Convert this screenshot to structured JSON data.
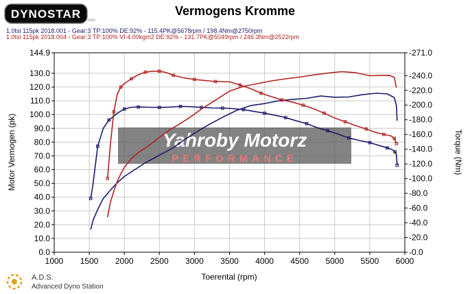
{
  "header": {
    "logo_text": "DYNOSTAR",
    "logo_sub": ".com",
    "title": "Vermogens Kromme"
  },
  "runs": [
    {
      "label": "1.0tsi 115pk 2018.001 - Gear:3 TP:100% DE:92%  - 115.4PK@5678rpm / 198.4Nm@2750rpm",
      "color": "#1a1a6e"
    },
    {
      "label": "1.0tsi 115pk 2018.004 - Gear:3 TP:100% VI:4.00kgm2 DE:92%  - 131.7PK@5049rpm / 246.3Nm@2522rpm",
      "color": "#b22222"
    }
  ],
  "watermark": {
    "line1": "Yahroby Motorz",
    "line2": "PERFORMANCE"
  },
  "footer": {
    "abbr": "A.D.S.",
    "name": "Advanced Dyno Station"
  },
  "chart_data": {
    "type": "line",
    "xlabel": "Toerental (rpm)",
    "ylabel_left": "Motor Vermogen (pk)",
    "ylabel_right": "Torque (Nm)",
    "xlim": [
      1000,
      6000
    ],
    "ylim_left": [
      0,
      144.9
    ],
    "ylim_right": [
      0,
      271
    ],
    "x_ticks": [
      1000,
      1500,
      2000,
      2500,
      3000,
      3500,
      4000,
      4500,
      5000,
      5500,
      6000
    ],
    "y_ticks_left": [
      "144.9",
      "130.0",
      "120.0",
      "110.0",
      "100.0",
      "90.0",
      "80.0",
      "70.0",
      "60.0",
      "50.0",
      "40.0",
      "30.0",
      "20.0",
      "10.0",
      "0.0"
    ],
    "y_ticks_right": [
      "-271.0",
      "-240.0",
      "-220.0",
      "-200.0",
      "-180.0",
      "-160.0",
      "-140.0",
      "-120.0",
      "-100.0",
      "-80.0",
      "-60.0",
      "-40.0",
      "-20.0",
      "-0.0"
    ],
    "grid": true,
    "series": [
      {
        "kind": "power",
        "axis": "left",
        "color": "#1a1a6e",
        "x": [
          1520,
          1550,
          1620,
          1700,
          1780,
          1900,
          2000,
          2100,
          2200,
          2350,
          2500,
          2650,
          2800,
          2950,
          3100,
          3250,
          3400,
          3550,
          3700,
          3850,
          4000,
          4150,
          4300,
          4450,
          4600,
          4750,
          4900,
          5050,
          5200,
          5350,
          5500,
          5650,
          5750,
          5820,
          5860,
          5880,
          5890
        ],
        "y": [
          39,
          48,
          77,
          90,
          96,
          101,
          104,
          105.3,
          105.5,
          105.3,
          105.2,
          105.4,
          105.9,
          105.7,
          105.2,
          104.8,
          104.7,
          104.3,
          103.6,
          102.3,
          101.0,
          99.5,
          97.8,
          95.5,
          93.4,
          90.5,
          88.3,
          85.8,
          83.0,
          81.2,
          79.6,
          77.3,
          75.8,
          74.5,
          72.9,
          70.8,
          63.2
        ]
      },
      {
        "kind": "torque",
        "axis": "left",
        "color": "#1a1a6e",
        "x": [
          1520,
          1560,
          1620,
          1700,
          1800,
          1900,
          2000,
          2150,
          2300,
          2500,
          2700,
          2850,
          3000,
          3200,
          3400,
          3600,
          3800,
          4000,
          4200,
          4400,
          4600,
          4800,
          5000,
          5200,
          5400,
          5600,
          5750,
          5850,
          5880,
          5890
        ],
        "y": [
          16.5,
          24,
          31,
          39,
          45,
          50.5,
          55,
          60,
          65,
          70.5,
          76,
          81.5,
          86.5,
          92.5,
          98,
          103,
          106.5,
          108,
          110,
          111,
          111.8,
          113.5,
          112.6,
          112.8,
          114.5,
          115.5,
          115,
          112.3,
          106.5,
          95.5
        ]
      },
      {
        "kind": "power",
        "axis": "left",
        "color": "#b22222",
        "x": [
          1760,
          1800,
          1850,
          1900,
          1950,
          2000,
          2100,
          2200,
          2300,
          2400,
          2500,
          2600,
          2700,
          2850,
          3000,
          3150,
          3300,
          3500,
          3650,
          3800,
          3950,
          4100,
          4250,
          4400,
          4550,
          4700,
          4850,
          5000,
          5150,
          5300,
          5450,
          5600,
          5700,
          5800,
          5850,
          5880
        ],
        "y": [
          53.5,
          78,
          102,
          115,
          120,
          122.5,
          126,
          128.9,
          130.8,
          131.5,
          131.5,
          130.5,
          128.5,
          126.7,
          125.5,
          124.8,
          124,
          123.8,
          121.5,
          118.8,
          115.5,
          113,
          110.6,
          109,
          106.8,
          104.2,
          101,
          97.5,
          94.8,
          91.9,
          89.5,
          86.8,
          85.6,
          84.6,
          82.7,
          78.9
        ]
      },
      {
        "kind": "torque",
        "axis": "left",
        "color": "#b22222",
        "x": [
          1760,
          1800,
          1850,
          1900,
          1950,
          2000,
          2100,
          2200,
          2350,
          2500,
          2650,
          2800,
          2950,
          3100,
          3300,
          3500,
          3700,
          3900,
          4100,
          4300,
          4500,
          4700,
          4900,
          5100,
          5300,
          5500,
          5650,
          5780,
          5850,
          5880
        ],
        "y": [
          25.5,
          36,
          44.5,
          51.5,
          57,
          61.5,
          68,
          72.5,
          77.5,
          83.5,
          89,
          93.5,
          98.5,
          104,
          110.5,
          117,
          120.5,
          122.5,
          124.5,
          126,
          127.2,
          128.8,
          130.1,
          131.2,
          130.4,
          128.2,
          128.4,
          128.5,
          127,
          119.5
        ]
      }
    ]
  }
}
